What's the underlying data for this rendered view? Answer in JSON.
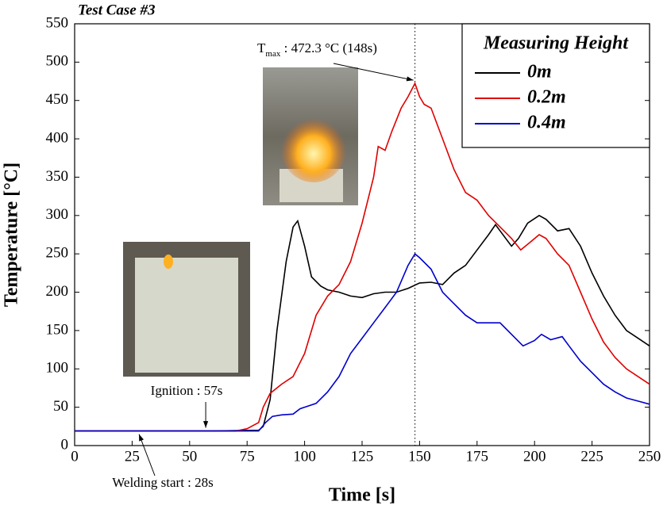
{
  "chart_data": {
    "type": "line",
    "title": "Test Case #3",
    "x_label": "Time [s]",
    "y_label": "Temperature [°C]",
    "xlim": [
      0,
      250
    ],
    "xticks": [
      0,
      25,
      50,
      75,
      100,
      125,
      150,
      175,
      200,
      225,
      250
    ],
    "ylim": [
      0,
      550
    ],
    "yticks": [
      0,
      50,
      100,
      150,
      200,
      250,
      300,
      350,
      400,
      450,
      500,
      550
    ],
    "legend_title": "Measuring Height",
    "legend": "upper right",
    "series": [
      {
        "name": "0m",
        "color": "#000000",
        "x": [
          0,
          20,
          40,
          60,
          80,
          82,
          85,
          88,
          92,
          95,
          97,
          100,
          103,
          107,
          110,
          115,
          120,
          125,
          130,
          135,
          140,
          145,
          150,
          155,
          160,
          165,
          170,
          175,
          180,
          183,
          185,
          190,
          193,
          197,
          202,
          205,
          210,
          215,
          220,
          225,
          230,
          235,
          240,
          245,
          250
        ],
        "values": [
          19,
          19,
          19,
          19,
          20,
          25,
          60,
          150,
          240,
          285,
          293,
          260,
          220,
          208,
          203,
          200,
          195,
          193,
          198,
          200,
          200,
          205,
          212,
          213,
          210,
          225,
          235,
          255,
          275,
          288,
          280,
          260,
          270,
          290,
          300,
          295,
          280,
          283,
          260,
          225,
          195,
          170,
          150,
          140,
          130
        ]
      },
      {
        "name": "0.2m",
        "color": "#e00000",
        "x": [
          0,
          20,
          40,
          60,
          70,
          75,
          80,
          82,
          85,
          90,
          95,
          100,
          105,
          110,
          115,
          120,
          125,
          130,
          132,
          135,
          138,
          142,
          145,
          148,
          150,
          152,
          155,
          160,
          165,
          170,
          175,
          180,
          185,
          190,
          194,
          198,
          202,
          205,
          210,
          215,
          220,
          225,
          230,
          235,
          240,
          245,
          250
        ],
        "values": [
          19,
          19,
          19,
          19,
          19,
          22,
          30,
          50,
          68,
          80,
          90,
          120,
          170,
          195,
          210,
          240,
          290,
          350,
          390,
          385,
          410,
          440,
          455,
          472.3,
          455,
          445,
          440,
          400,
          360,
          330,
          320,
          300,
          285,
          270,
          255,
          265,
          275,
          270,
          250,
          235,
          200,
          165,
          135,
          115,
          100,
          90,
          80
        ]
      },
      {
        "name": "0.4m",
        "color": "#0000cc",
        "x": [
          0,
          20,
          40,
          60,
          80,
          83,
          86,
          90,
          95,
          98,
          100,
          105,
          110,
          115,
          120,
          125,
          130,
          135,
          140,
          145,
          148,
          150,
          155,
          160,
          165,
          170,
          175,
          180,
          185,
          190,
          195,
          200,
          203,
          207,
          212,
          215,
          220,
          225,
          230,
          235,
          240,
          245,
          250
        ],
        "values": [
          19,
          19,
          19,
          19,
          19,
          30,
          38,
          40,
          41,
          48,
          50,
          55,
          70,
          90,
          120,
          140,
          160,
          180,
          200,
          235,
          250,
          245,
          230,
          200,
          185,
          170,
          160,
          160,
          160,
          145,
          130,
          137,
          145,
          138,
          142,
          130,
          110,
          95,
          80,
          70,
          62,
          58,
          54
        ]
      }
    ],
    "annotations": {
      "tmax": {
        "symbol": "T",
        "subscript": "max",
        "text": " : 472.3 °C (148s)",
        "x": 148
      },
      "ignition": {
        "text": "Ignition : 57s",
        "x": 57
      },
      "welding": {
        "text": "Welding start : 28s",
        "x": 28
      }
    }
  }
}
